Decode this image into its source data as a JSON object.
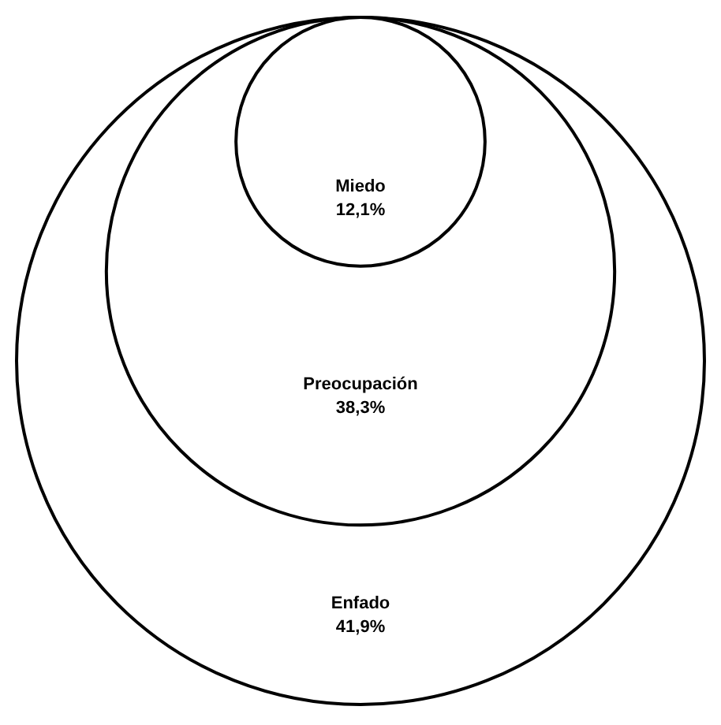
{
  "chart_data": {
    "type": "other",
    "categories": [
      "Miedo",
      "Preocupación",
      "Enfado"
    ],
    "values": [
      12.1,
      38.3,
      41.9
    ],
    "value_labels": [
      "12,1%",
      "38,3%",
      "41,9%"
    ]
  }
}
